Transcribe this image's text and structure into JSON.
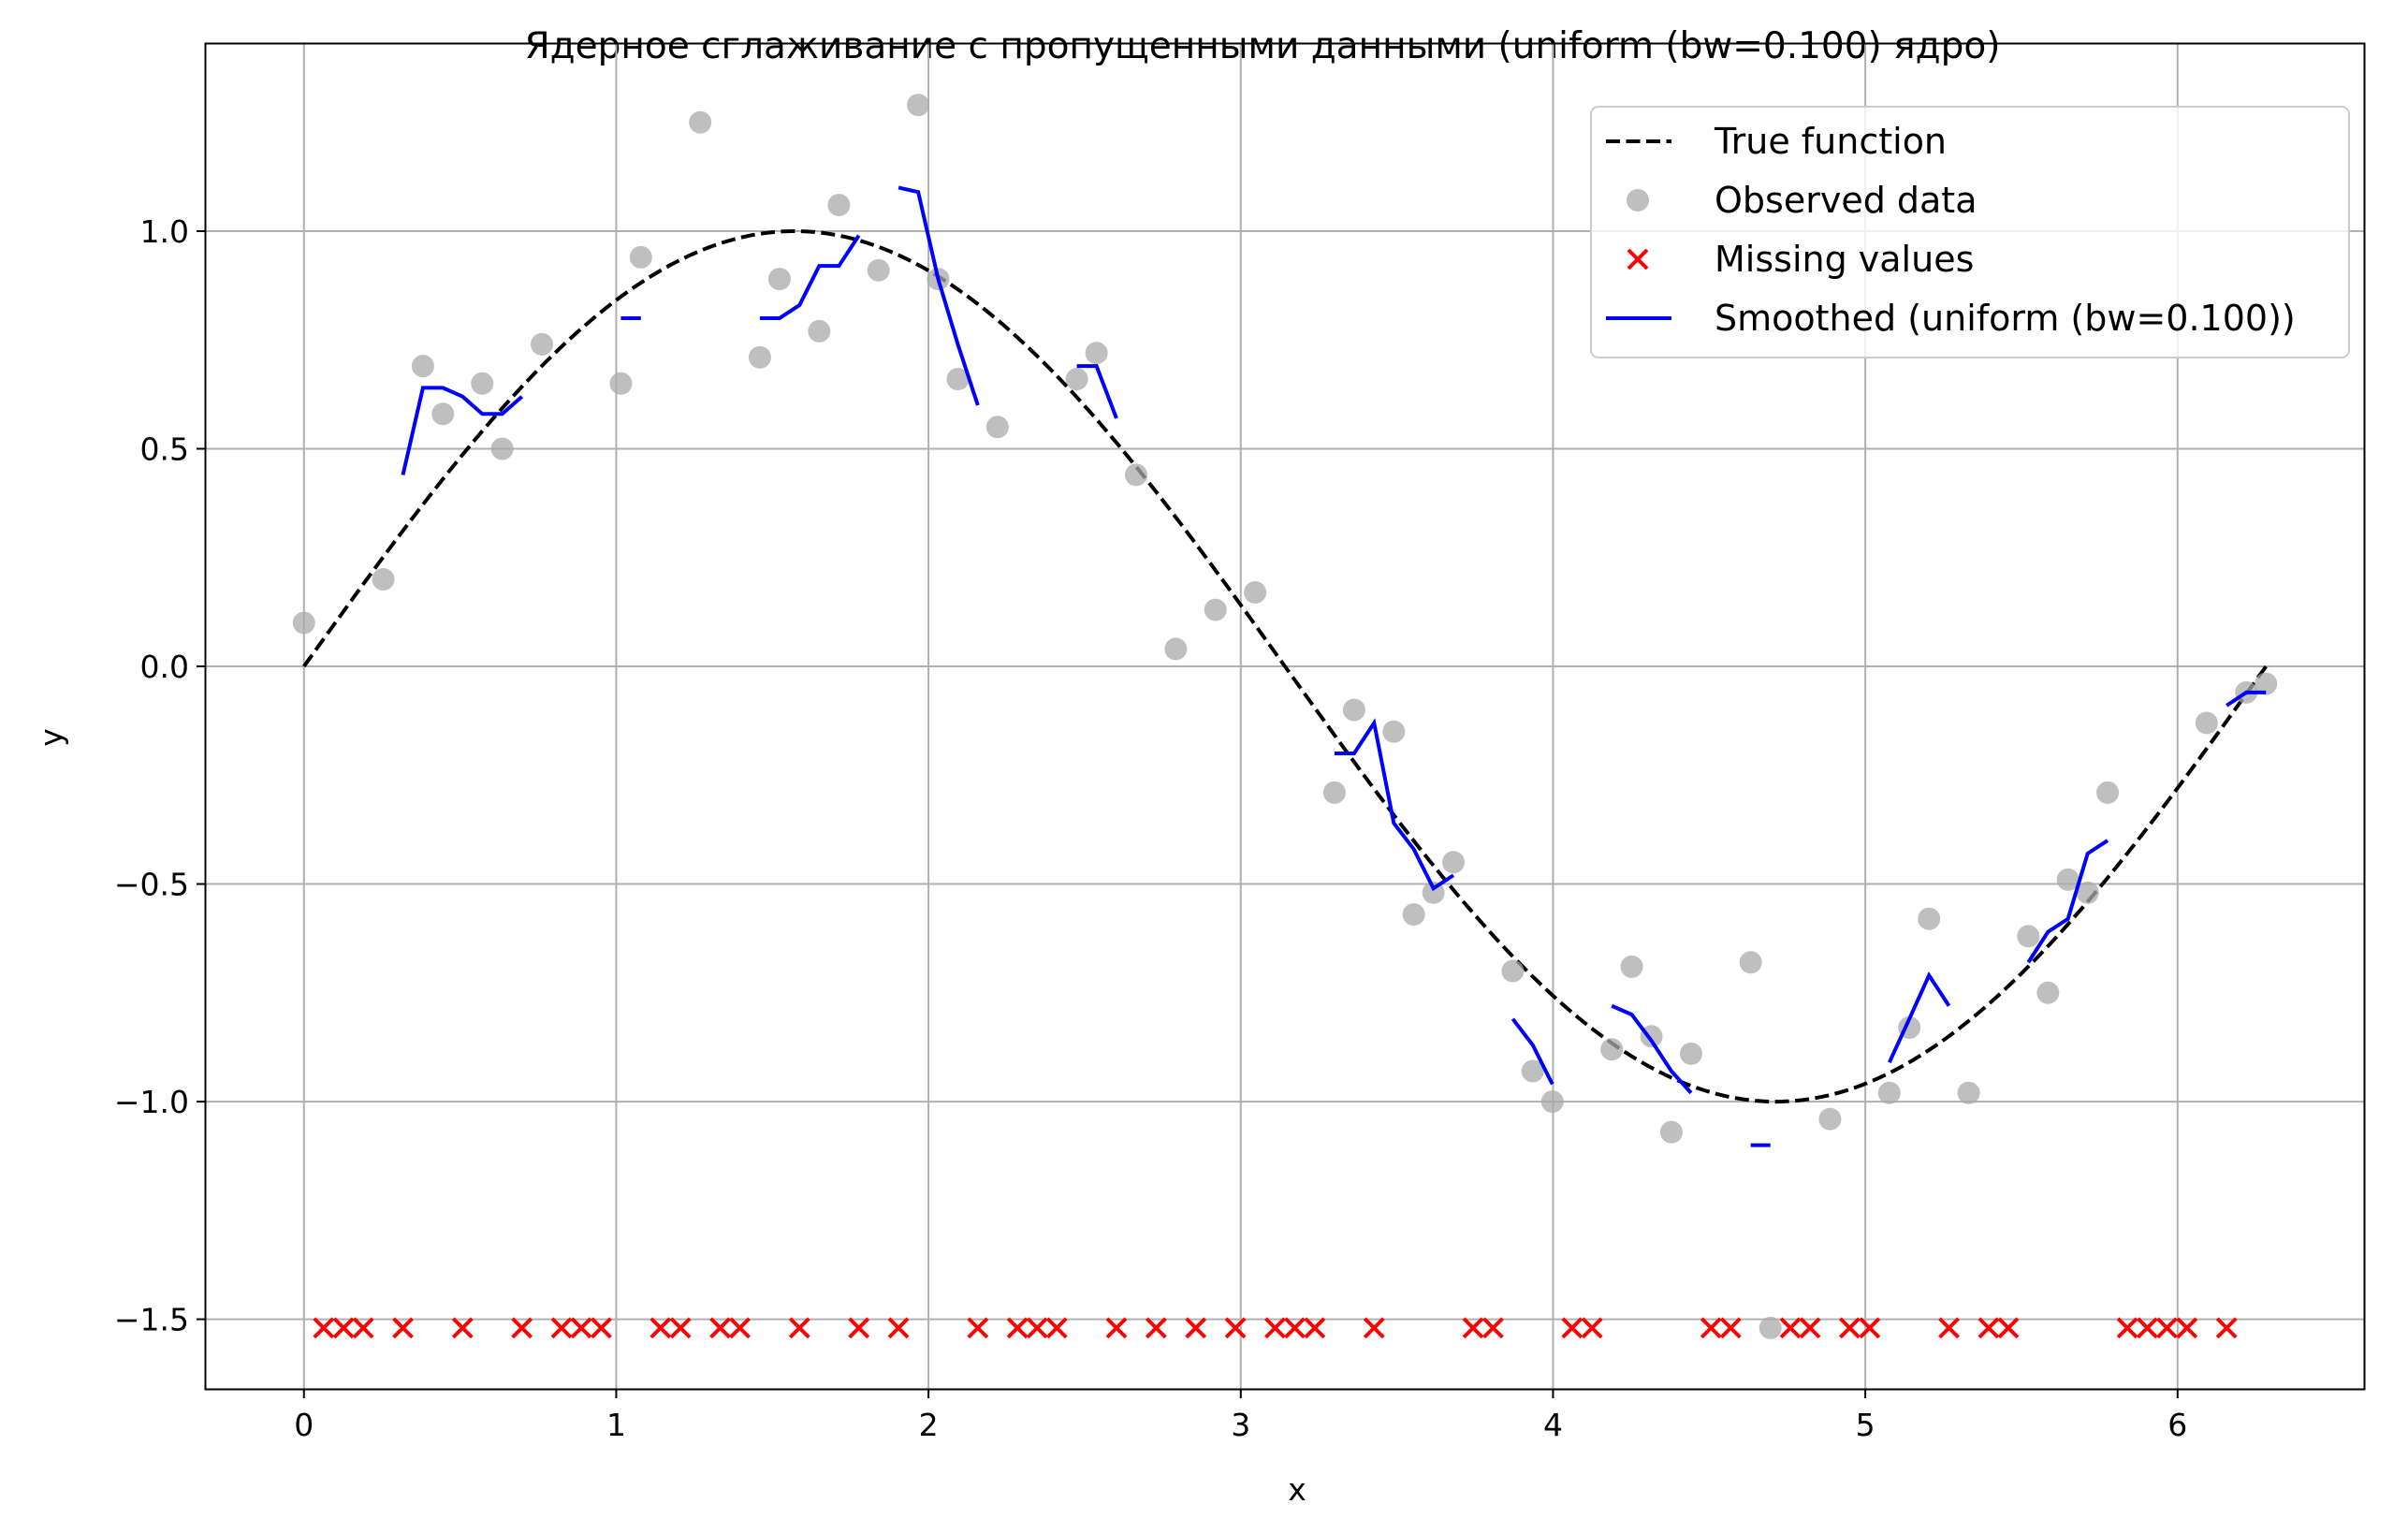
{
  "chart_data": {
    "type": "scatter",
    "title": "Ядерное сглаживание с пропущенными данными (uniform (bw=0.100) ядро)",
    "xlabel": "x",
    "ylabel": "y",
    "xlim": [
      -0.314,
      6.597
    ],
    "ylim": [
      -1.66,
      1.43
    ],
    "grid": true,
    "legend_position": "top-right",
    "x_ticks": [
      0,
      1,
      2,
      3,
      4,
      5,
      6
    ],
    "x_tick_labels": [
      "0",
      "1",
      "2",
      "3",
      "4",
      "5",
      "6"
    ],
    "y_ticks": [
      1.0,
      0.5,
      0.0,
      -0.5,
      -1.0,
      -1.5
    ],
    "y_tick_labels": [
      "1.0",
      "0.5",
      "0.0",
      "−0.5",
      "−1.0",
      "−1.5"
    ],
    "colors": {
      "true_function": "#000000",
      "observed": "#a9a9a9",
      "missing": "#ff0000",
      "smoothed": "#0000ff",
      "grid": "#b0b0b0"
    },
    "legend": [
      {
        "label": "True function",
        "style": "dashed-line"
      },
      {
        "label": "Observed data",
        "style": "circle"
      },
      {
        "label": "Missing values",
        "style": "x-marker"
      },
      {
        "label": "Smoothed (uniform (bw=0.100))",
        "style": "solid-line"
      }
    ],
    "series": [
      {
        "name": "True function",
        "kind": "function-sin",
        "x_range": [
          0,
          6.283
        ]
      },
      {
        "name": "Observed data",
        "points": [
          [
            0.0,
            0.1
          ],
          [
            0.254,
            0.2
          ],
          [
            0.381,
            0.69
          ],
          [
            0.445,
            0.58
          ],
          [
            0.571,
            0.65
          ],
          [
            0.635,
            0.5
          ],
          [
            0.762,
            0.74
          ],
          [
            1.015,
            0.65
          ],
          [
            1.079,
            0.94
          ],
          [
            1.269,
            1.25
          ],
          [
            1.46,
            0.71
          ],
          [
            1.523,
            0.89
          ],
          [
            1.65,
            0.77
          ],
          [
            1.713,
            1.06
          ],
          [
            1.84,
            0.91
          ],
          [
            1.967,
            1.29
          ],
          [
            2.031,
            0.89
          ],
          [
            2.094,
            0.66
          ],
          [
            2.221,
            0.55
          ],
          [
            2.475,
            0.66
          ],
          [
            2.538,
            0.72
          ],
          [
            2.665,
            0.44
          ],
          [
            2.792,
            0.04
          ],
          [
            2.919,
            0.13
          ],
          [
            3.046,
            0.17
          ],
          [
            3.3,
            -0.29
          ],
          [
            3.363,
            -0.1
          ],
          [
            3.49,
            -0.15
          ],
          [
            3.554,
            -0.57
          ],
          [
            3.617,
            -0.52
          ],
          [
            3.681,
            -0.45
          ],
          [
            3.871,
            -0.7
          ],
          [
            3.935,
            -0.93
          ],
          [
            3.998,
            -1.0
          ],
          [
            4.188,
            -0.88
          ],
          [
            4.252,
            -0.69
          ],
          [
            4.315,
            -0.85
          ],
          [
            4.379,
            -1.07
          ],
          [
            4.442,
            -0.89
          ],
          [
            4.633,
            -0.68
          ],
          [
            4.696,
            -1.52
          ],
          [
            4.887,
            -1.04
          ],
          [
            5.077,
            -0.98
          ],
          [
            5.141,
            -0.83
          ],
          [
            5.204,
            -0.58
          ],
          [
            5.331,
            -0.98
          ],
          [
            5.522,
            -0.62
          ],
          [
            5.585,
            -0.75
          ],
          [
            5.649,
            -0.49
          ],
          [
            5.712,
            -0.52
          ],
          [
            5.776,
            -0.29
          ],
          [
            6.093,
            -0.13
          ],
          [
            6.22,
            -0.06
          ],
          [
            6.283,
            -0.04
          ]
        ]
      },
      {
        "name": "Missing values",
        "y": -1.52,
        "x": [
          0.063,
          0.127,
          0.19,
          0.317,
          0.508,
          0.698,
          0.825,
          0.888,
          0.952,
          1.142,
          1.206,
          1.333,
          1.396,
          1.587,
          1.777,
          1.904,
          2.158,
          2.285,
          2.348,
          2.411,
          2.602,
          2.729,
          2.856,
          2.983,
          3.11,
          3.173,
          3.237,
          3.427,
          3.744,
          3.808,
          4.061,
          4.125,
          4.506,
          4.569,
          4.76,
          4.823,
          4.95,
          5.014,
          5.268,
          5.395,
          5.458,
          5.839,
          5.903,
          5.966,
          6.03,
          6.157
        ]
      },
      {
        "name": "Smoothed (uniform (bw=0.100))",
        "segments": [
          [
            [
              0.317,
              0.44
            ],
            [
              0.381,
              0.64
            ],
            [
              0.445,
              0.64
            ],
            [
              0.508,
              0.62
            ],
            [
              0.571,
              0.58
            ],
            [
              0.635,
              0.58
            ],
            [
              0.698,
              0.62
            ]
          ],
          [
            [
              1.015,
              0.8
            ],
            [
              1.079,
              0.8
            ]
          ],
          [
            [
              1.46,
              0.8
            ],
            [
              1.523,
              0.8
            ],
            [
              1.587,
              0.83
            ],
            [
              1.65,
              0.92
            ],
            [
              1.713,
              0.92
            ],
            [
              1.777,
              0.99
            ]
          ],
          [
            [
              1.904,
              1.1
            ],
            [
              1.967,
              1.09
            ],
            [
              2.031,
              0.89
            ],
            [
              2.094,
              0.74
            ],
            [
              2.158,
              0.6
            ]
          ],
          [
            [
              2.475,
              0.69
            ],
            [
              2.538,
              0.69
            ],
            [
              2.602,
              0.57
            ]
          ],
          [
            [
              3.3,
              -0.2
            ],
            [
              3.363,
              -0.2
            ],
            [
              3.427,
              -0.13
            ],
            [
              3.49,
              -0.36
            ],
            [
              3.554,
              -0.42
            ],
            [
              3.617,
              -0.51
            ],
            [
              3.681,
              -0.48
            ]
          ],
          [
            [
              3.871,
              -0.81
            ],
            [
              3.935,
              -0.87
            ],
            [
              3.998,
              -0.96
            ]
          ],
          [
            [
              4.188,
              -0.78
            ],
            [
              4.252,
              -0.8
            ],
            [
              4.315,
              -0.86
            ],
            [
              4.379,
              -0.93
            ],
            [
              4.442,
              -0.98
            ]
          ],
          [
            [
              4.633,
              -1.1
            ],
            [
              4.696,
              -1.1
            ]
          ],
          [
            [
              5.077,
              -0.91
            ],
            [
              5.141,
              -0.81
            ],
            [
              5.204,
              -0.71
            ],
            [
              5.268,
              -0.78
            ]
          ],
          [
            [
              5.522,
              -0.68
            ],
            [
              5.585,
              -0.61
            ],
            [
              5.649,
              -0.58
            ],
            [
              5.712,
              -0.43
            ],
            [
              5.776,
              -0.4
            ]
          ],
          [
            [
              6.157,
              -0.09
            ],
            [
              6.22,
              -0.06
            ],
            [
              6.283,
              -0.06
            ]
          ]
        ]
      }
    ]
  }
}
